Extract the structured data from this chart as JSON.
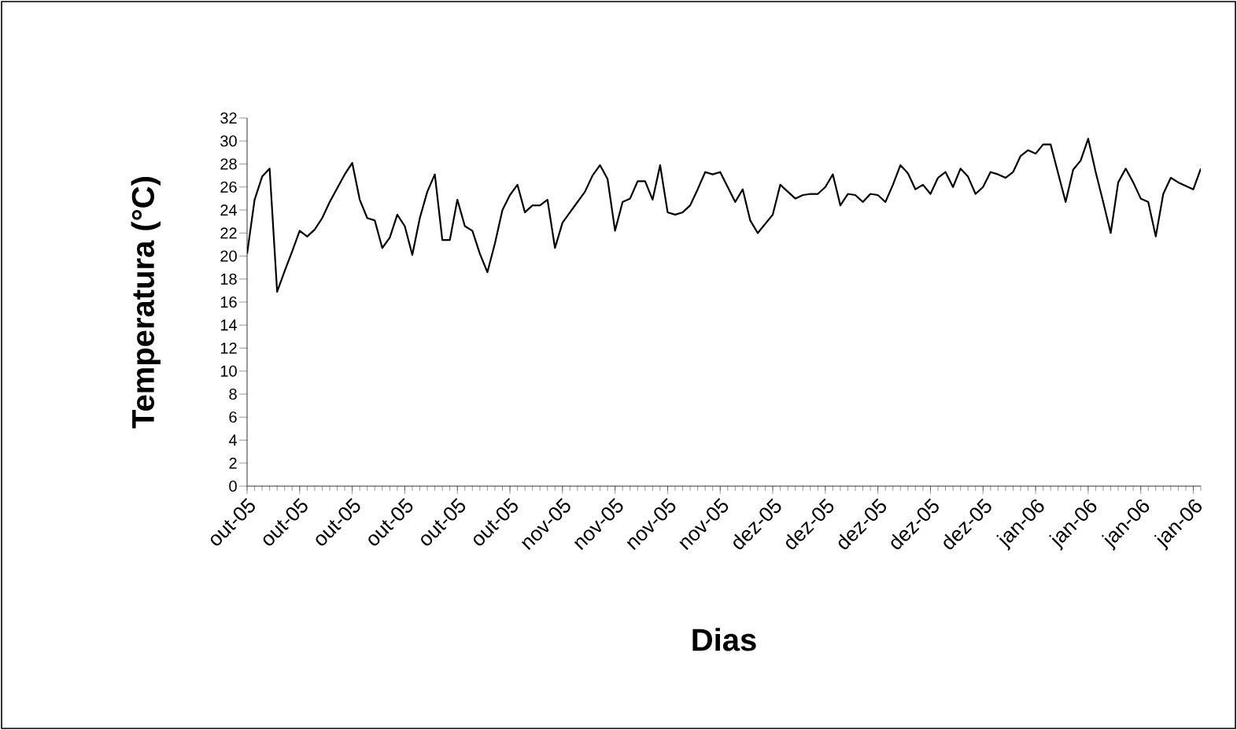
{
  "chart_data": {
    "type": "line",
    "xlabel": "Dias",
    "ylabel": "Temperatura (°C)",
    "categories": [
      "out-05",
      null,
      null,
      null,
      null,
      null,
      null,
      "out-05",
      null,
      null,
      null,
      null,
      null,
      null,
      "out-05",
      null,
      null,
      null,
      null,
      null,
      null,
      "out-05",
      null,
      null,
      null,
      null,
      null,
      null,
      "out-05",
      null,
      null,
      null,
      null,
      null,
      null,
      "out-05",
      null,
      null,
      null,
      null,
      null,
      null,
      "nov-05",
      null,
      null,
      null,
      null,
      null,
      null,
      "nov-05",
      null,
      null,
      null,
      null,
      null,
      null,
      "nov-05",
      null,
      null,
      null,
      null,
      null,
      null,
      "nov-05",
      null,
      null,
      null,
      null,
      null,
      null,
      "dez-05",
      null,
      null,
      null,
      null,
      null,
      null,
      "dez-05",
      null,
      null,
      null,
      null,
      null,
      null,
      "dez-05",
      null,
      null,
      null,
      null,
      null,
      null,
      "dez-05",
      null,
      null,
      null,
      null,
      null,
      null,
      "dez-05",
      null,
      null,
      null,
      null,
      null,
      null,
      "jan-06",
      null,
      null,
      null,
      null,
      null,
      null,
      "jan-06",
      null,
      null,
      null,
      null,
      null,
      null,
      "jan-06",
      null,
      null,
      null,
      null,
      null,
      null,
      "jan-06",
      null
    ],
    "series": [
      {
        "color": "#000000",
        "values": [
          20.2,
          24.9,
          26.9,
          27.6,
          16.9,
          18.7,
          20.4,
          22.2,
          21.7,
          22.3,
          23.3,
          24.7,
          25.9,
          27.1,
          28.1,
          24.9,
          23.3,
          23.1,
          20.7,
          21.6,
          23.6,
          22.6,
          20.1,
          23.3,
          25.6,
          27.1,
          21.4,
          21.4,
          24.9,
          22.6,
          22.2,
          20.2,
          18.6,
          21.1,
          24.0,
          25.3,
          26.2,
          23.8,
          24.4,
          24.4,
          24.9,
          20.7,
          22.9,
          23.8,
          24.7,
          25.6,
          27.0,
          27.9,
          26.7,
          22.2,
          24.7,
          25.0,
          26.5,
          26.5,
          24.9,
          27.9,
          23.8,
          23.6,
          23.8,
          24.4,
          25.8,
          27.3,
          27.1,
          27.3,
          26.0,
          24.7,
          25.8,
          23.1,
          22.0,
          22.8,
          23.6,
          26.2,
          25.6,
          25.0,
          25.3,
          25.4,
          25.4,
          26.0,
          27.1,
          24.4,
          25.4,
          25.3,
          24.7,
          25.4,
          25.3,
          24.7,
          26.2,
          27.9,
          27.2,
          25.8,
          26.2,
          25.4,
          26.8,
          27.3,
          26.0,
          27.6,
          26.9,
          25.4,
          26.0,
          27.3,
          27.1,
          26.8,
          27.3,
          28.7,
          29.2,
          28.9,
          29.7,
          29.7,
          27.2,
          24.7,
          27.5,
          28.3,
          30.2,
          27.3,
          24.7,
          22.0,
          26.4,
          27.6,
          26.4,
          25.0,
          24.7,
          21.7,
          25.4,
          26.8,
          26.4,
          26.1,
          25.8,
          27.6
        ]
      }
    ],
    "ylim": [
      0,
      32
    ],
    "yticks": [
      0,
      2,
      4,
      6,
      8,
      10,
      12,
      14,
      16,
      18,
      20,
      22,
      24,
      26,
      28,
      30,
      32
    ],
    "grid": false,
    "marker": "none",
    "line_style": "solid"
  }
}
